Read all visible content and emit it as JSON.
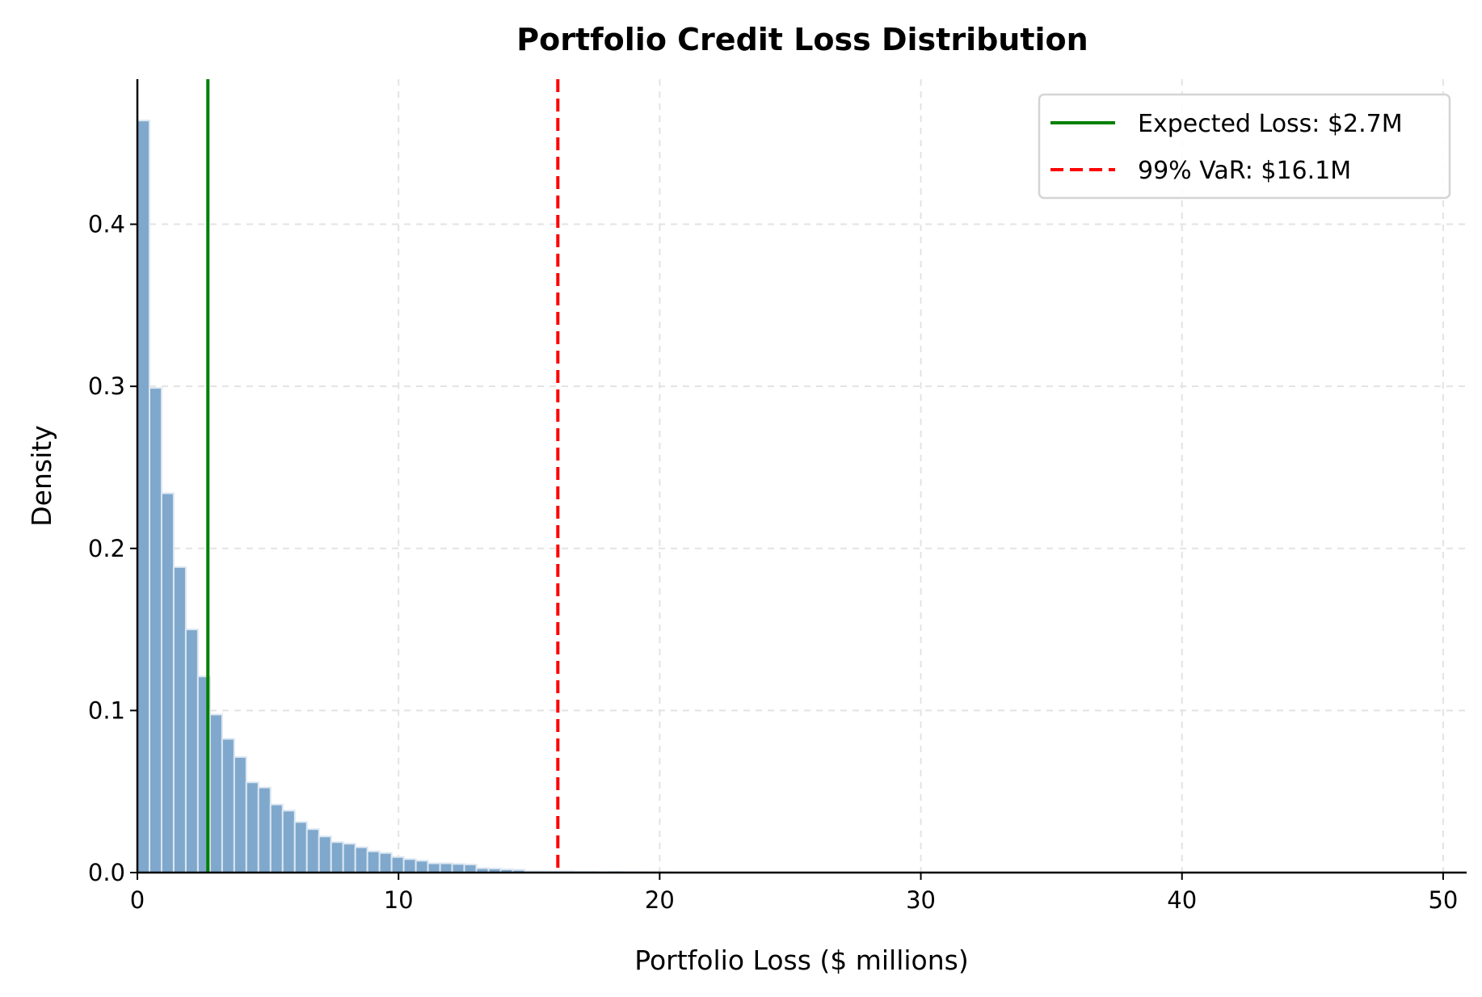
{
  "chart_data": {
    "type": "bar",
    "title": "Portfolio Credit Loss Distribution",
    "xlabel": "Portfolio Loss ($ millions)",
    "ylabel": "Density",
    "xlim": [
      0,
      50.9
    ],
    "ylim": [
      0,
      0.4895
    ],
    "xticks": [
      0,
      10,
      20,
      30,
      40,
      50
    ],
    "xtick_labels": [
      "0",
      "10",
      "20",
      "30",
      "40",
      "50"
    ],
    "yticks": [
      0,
      0.1,
      0.2,
      0.3,
      0.4
    ],
    "ytick_labels": [
      "0.0",
      "0.1",
      "0.2",
      "0.3",
      "0.4"
    ],
    "grid": true,
    "bin_width": 0.4636,
    "bin_start": 0,
    "values": [
      0.464,
      0.299,
      0.234,
      0.1885,
      0.15,
      0.121,
      0.0975,
      0.0825,
      0.0713,
      0.0557,
      0.0525,
      0.042,
      0.0382,
      0.0312,
      0.0268,
      0.0223,
      0.0188,
      0.0178,
      0.0156,
      0.0131,
      0.0121,
      0.0096,
      0.0083,
      0.0073,
      0.0057,
      0.0057,
      0.0053,
      0.005,
      0.0027,
      0.0025,
      0.002,
      0.0017,
      0.0008,
      0.0008,
      0.0007,
      0.0008,
      0.0005,
      0.0005,
      0.0003,
      0.0005,
      0.0003,
      0.0003,
      0.0002,
      0.0001
    ],
    "bar_color": "#7fa8cc",
    "bar_edge_color": "#dce7f2",
    "reference_lines": [
      {
        "name": "Expected Loss: $2.7M",
        "x": 2.7,
        "color": "#008000",
        "style": "solid"
      },
      {
        "name": "99% VaR: $16.1M",
        "x": 16.1,
        "color": "#ff0000",
        "style": "dashed"
      }
    ],
    "legend_position": "top-right"
  }
}
